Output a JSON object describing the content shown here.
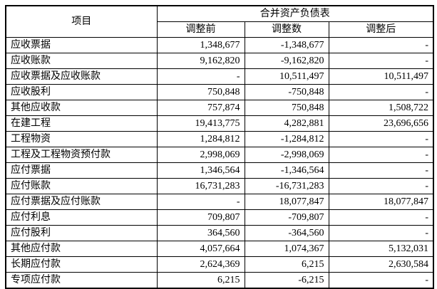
{
  "table": {
    "header": {
      "item_column": "项目",
      "group_title": "合并资产负债表",
      "sub_columns": [
        "调整前",
        "调整数",
        "调整后"
      ]
    },
    "rows": [
      {
        "label": "应收票据",
        "before": "1,348,677",
        "adjustment": "-1,348,677",
        "after": "-"
      },
      {
        "label": "应收账款",
        "before": "9,162,820",
        "adjustment": "-9,162,820",
        "after": "-"
      },
      {
        "label": "应收票据及应收账款",
        "before": "-",
        "adjustment": "10,511,497",
        "after": "10,511,497"
      },
      {
        "label": "应收股利",
        "before": "750,848",
        "adjustment": "-750,848",
        "after": "-"
      },
      {
        "label": "其他应收款",
        "before": "757,874",
        "adjustment": "750,848",
        "after": "1,508,722"
      },
      {
        "label": "在建工程",
        "before": "19,413,775",
        "adjustment": "4,282,881",
        "after": "23,696,656"
      },
      {
        "label": "工程物资",
        "before": "1,284,812",
        "adjustment": "-1,284,812",
        "after": "-"
      },
      {
        "label": "工程及工程物资预付款",
        "before": "2,998,069",
        "adjustment": "-2,998,069",
        "after": "-"
      },
      {
        "label": "应付票据",
        "before": "1,346,564",
        "adjustment": "-1,346,564",
        "after": "-"
      },
      {
        "label": "应付账款",
        "before": "16,731,283",
        "adjustment": "-16,731,283",
        "after": "-"
      },
      {
        "label": "应付票据及应付账款",
        "before": "-",
        "adjustment": "18,077,847",
        "after": "18,077,847"
      },
      {
        "label": "应付利息",
        "before": "709,807",
        "adjustment": "-709,807",
        "after": "-"
      },
      {
        "label": "应付股利",
        "before": "364,560",
        "adjustment": "-364,560",
        "after": "-"
      },
      {
        "label": "其他应付款",
        "before": "4,057,664",
        "adjustment": "1,074,367",
        "after": "5,132,031"
      },
      {
        "label": "长期应付款",
        "before": "2,624,369",
        "adjustment": "6,215",
        "after": "2,630,584"
      },
      {
        "label": "专项应付款",
        "before": "6,215",
        "adjustment": "-6,215",
        "after": "-"
      }
    ]
  }
}
